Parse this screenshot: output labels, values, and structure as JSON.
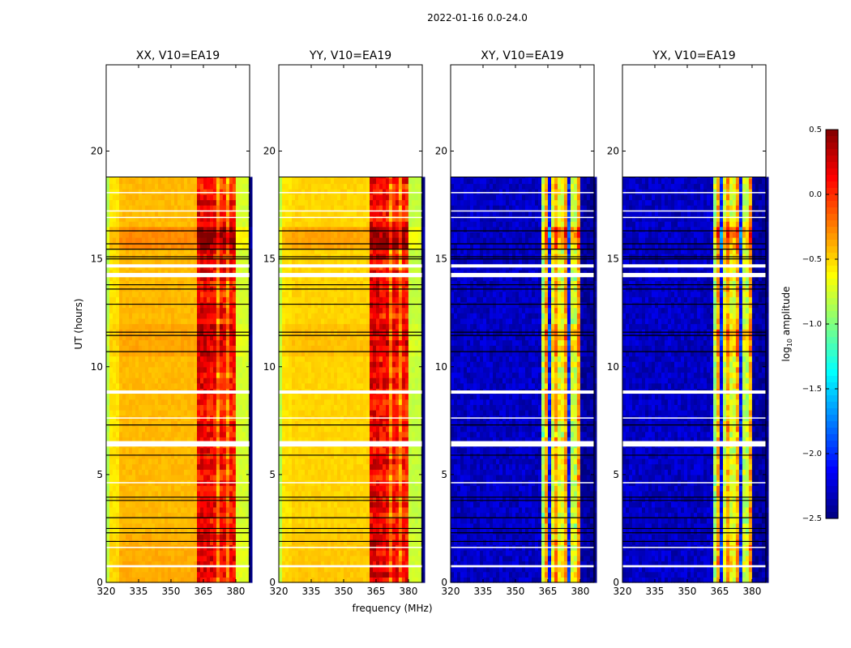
{
  "chart_data": {
    "type": "heatmap",
    "suptitle": "2022-01-16 0.0-24.0",
    "xlabel": "frequency (MHz)",
    "ylabel": "UT (hours)",
    "xlim": [
      320,
      386.4
    ],
    "ylim": [
      0,
      24
    ],
    "xticks": [
      "320",
      "335",
      "350",
      "365",
      "380"
    ],
    "xtick_values": [
      320,
      335,
      350,
      365,
      380
    ],
    "yticks": [
      "0",
      "5",
      "10",
      "15",
      "20"
    ],
    "ytick_values": [
      0,
      5,
      10,
      15,
      20
    ],
    "data_end_hour": 18.8,
    "panels": [
      {
        "title": "XX, V10=EA19",
        "pol": "XX",
        "profile": [
          [
            320,
            322,
            -0.85
          ],
          [
            322,
            326,
            -0.55
          ],
          [
            326,
            362,
            -0.42
          ],
          [
            362,
            366,
            0.15
          ],
          [
            366,
            367,
            -0.3
          ],
          [
            367,
            371,
            0.1
          ],
          [
            371,
            372,
            -0.3
          ],
          [
            372,
            376,
            0.05
          ],
          [
            376,
            377,
            -0.3
          ],
          [
            377,
            380,
            0.05
          ],
          [
            380,
            386.4,
            -0.75
          ]
        ]
      },
      {
        "title": "YY, V10=EA19",
        "pol": "YY",
        "profile": [
          [
            320,
            322,
            -0.85
          ],
          [
            322,
            326,
            -0.55
          ],
          [
            326,
            362,
            -0.5
          ],
          [
            362,
            366,
            0.15
          ],
          [
            366,
            367,
            -0.3
          ],
          [
            367,
            371,
            0.1
          ],
          [
            371,
            372,
            -0.3
          ],
          [
            372,
            376,
            0.05
          ],
          [
            376,
            377,
            -0.3
          ],
          [
            377,
            380,
            0.05
          ],
          [
            380,
            386.4,
            -0.8
          ]
        ]
      },
      {
        "title": "XY, V10=EA19",
        "pol": "XY",
        "profile": [
          [
            320,
            362,
            -2.3
          ],
          [
            362,
            364,
            -0.9
          ],
          [
            364,
            365,
            -0.35
          ],
          [
            365,
            366,
            -2.1
          ],
          [
            366,
            368,
            -0.7
          ],
          [
            368,
            369,
            -0.35
          ],
          [
            369,
            370,
            -2.1
          ],
          [
            370,
            373,
            -0.7
          ],
          [
            373,
            374,
            -0.35
          ],
          [
            374,
            375,
            -2.1
          ],
          [
            375,
            379,
            -0.8
          ],
          [
            379,
            380,
            -0.35
          ],
          [
            380,
            386.4,
            -2.4
          ]
        ]
      },
      {
        "title": "YX, V10=EA19",
        "pol": "YX",
        "profile": [
          [
            320,
            362,
            -2.3
          ],
          [
            362,
            364,
            -0.9
          ],
          [
            364,
            365,
            -0.35
          ],
          [
            365,
            366,
            -2.1
          ],
          [
            366,
            368,
            -0.7
          ],
          [
            368,
            369,
            -0.35
          ],
          [
            369,
            370,
            -2.1
          ],
          [
            370,
            373,
            -0.7
          ],
          [
            373,
            374,
            -0.35
          ],
          [
            374,
            375,
            -2.1
          ],
          [
            375,
            379,
            -0.8
          ],
          [
            379,
            380,
            -0.35
          ],
          [
            380,
            386.4,
            -2.4
          ]
        ]
      }
    ],
    "time_boost": [
      [
        15.3,
        16.3,
        0.35
      ],
      [
        10.5,
        12.0,
        0.15
      ],
      [
        0.0,
        2.2,
        0.1
      ]
    ],
    "gaps_white": [
      [
        14.15,
        14.35
      ],
      [
        14.6,
        14.75
      ],
      [
        8.75,
        8.9
      ],
      [
        6.3,
        6.55
      ],
      [
        18.05,
        18.1
      ],
      [
        17.2,
        17.25
      ],
      [
        16.9,
        16.95
      ],
      [
        7.6,
        7.65
      ],
      [
        0.7,
        0.8
      ],
      [
        1.6,
        1.65
      ],
      [
        4.6,
        4.65
      ]
    ],
    "flag_lines_black": [
      16.3,
      15.7,
      15.45,
      15.1,
      15.0,
      13.8,
      13.6,
      12.9,
      11.6,
      11.45,
      10.7,
      7.3,
      5.9,
      3.95,
      3.8,
      3.0,
      2.5,
      2.3,
      1.9
    ],
    "colorbar": {
      "label": "log10 amplitude",
      "label_main": "log",
      "label_sub": "10",
      "label_rest": " amplitude",
      "range": [
        -2.5,
        0.5
      ],
      "ticks": [
        "0.5",
        "0.0",
        "−0.5",
        "−1.0",
        "−1.5",
        "−2.0",
        "−2.5"
      ],
      "tick_values": [
        0.5,
        0.0,
        -0.5,
        -1.0,
        -1.5,
        -2.0,
        -2.5
      ],
      "colormap": "jet"
    }
  }
}
